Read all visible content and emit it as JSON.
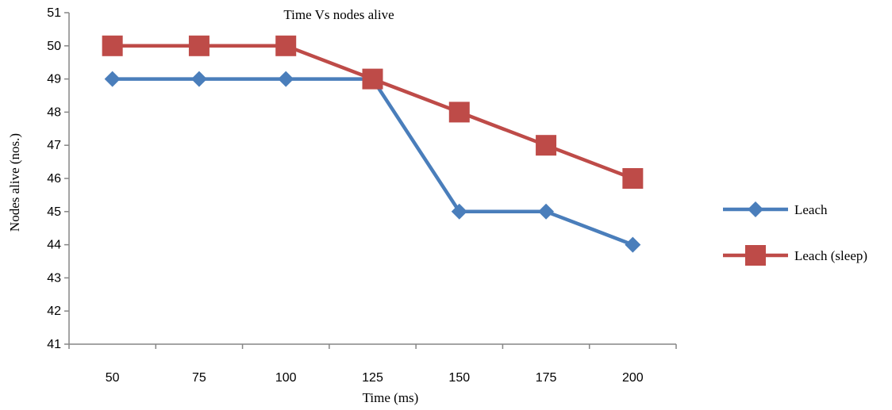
{
  "chart_data": {
    "type": "line",
    "title": "Time Vs nodes alive",
    "xlabel": "Time (ms)",
    "ylabel": "Nodes alive (nos.)",
    "categories": [
      "50",
      "75",
      "100",
      "125",
      "150",
      "175",
      "200"
    ],
    "ylim": [
      41,
      51
    ],
    "yticks": [
      41,
      42,
      43,
      44,
      45,
      46,
      47,
      48,
      49,
      50,
      51
    ],
    "grid": false,
    "legend_position": "right",
    "series": [
      {
        "name": "Leach",
        "values": [
          49,
          49,
          49,
          49,
          45,
          45,
          44
        ],
        "color": "#4a7ebb",
        "marker": "diamond"
      },
      {
        "name": "Leach (sleep)",
        "values": [
          50,
          50,
          50,
          49,
          48,
          47,
          46
        ],
        "color": "#be4b48",
        "marker": "square"
      }
    ]
  }
}
